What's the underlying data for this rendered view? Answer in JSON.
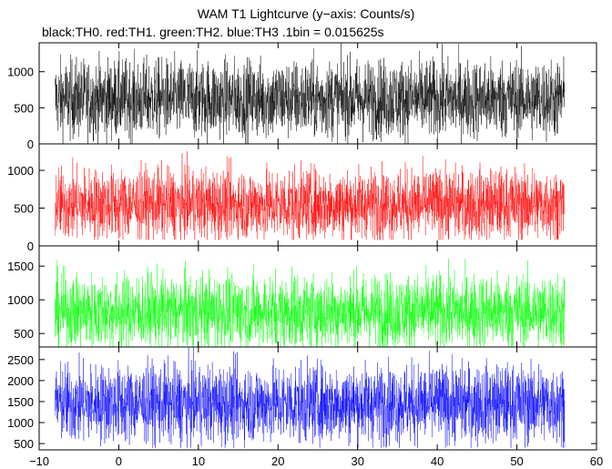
{
  "title": "WAM T1 Lightcurve (y−axis: Counts/s)",
  "subtitle": "black:TH0. red:TH1. green:TH2. blue:TH3 .1bin = 0.015625s",
  "chart_data": {
    "type": "line",
    "xlim": [
      -10,
      60
    ],
    "x_ticks": [
      "−10",
      "0",
      "10",
      "20",
      "30",
      "40",
      "50",
      "60"
    ],
    "x_tick_values": [
      -10,
      0,
      10,
      20,
      30,
      40,
      50,
      60
    ],
    "x_data_range": [
      -8,
      56
    ],
    "bin_seconds": 0.015625,
    "panels": [
      {
        "name": "TH0",
        "color": "#000000",
        "ylim": [
          0,
          1400
        ],
        "y_ticks": [
          0,
          500,
          1000
        ],
        "approx_mean": 620,
        "approx_min": 0,
        "approx_max": 1400
      },
      {
        "name": "TH1",
        "color": "#ff0000",
        "ylim": [
          0,
          1350
        ],
        "y_ticks": [
          0,
          500,
          1000
        ],
        "approx_mean": 550,
        "approx_min": 80,
        "approx_max": 1300
      },
      {
        "name": "TH2",
        "color": "#00ff00",
        "ylim": [
          300,
          1800
        ],
        "y_ticks": [
          500,
          1000,
          1500
        ],
        "approx_mean": 820,
        "approx_min": 300,
        "approx_max": 1750
      },
      {
        "name": "TH3",
        "color": "#0000ff",
        "ylim": [
          350,
          2800
        ],
        "y_ticks": [
          500,
          1000,
          1500,
          2000,
          2500
        ],
        "approx_mean": 1450,
        "approx_min": 400,
        "approx_max": 2800
      }
    ]
  }
}
